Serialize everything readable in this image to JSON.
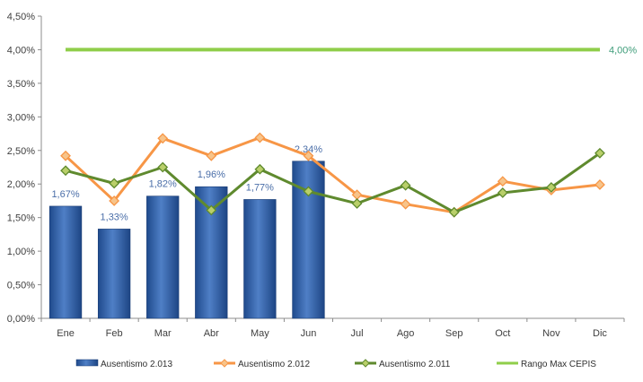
{
  "chart_data": {
    "type": "bar",
    "categories": [
      "Ene",
      "Feb",
      "Mar",
      "Abr",
      "May",
      "Jun",
      "Jul",
      "Ago",
      "Sep",
      "Oct",
      "Nov",
      "Dic"
    ],
    "ylim": [
      0,
      4.5
    ],
    "yticks": [
      "0,00%",
      "0,50%",
      "1,00%",
      "1,50%",
      "2,00%",
      "2,50%",
      "3,00%",
      "3,50%",
      "4,00%",
      "4,50%"
    ],
    "ytick_values": [
      0,
      0.5,
      1,
      1.5,
      2,
      2.5,
      3,
      3.5,
      4,
      4.5
    ],
    "grid": false,
    "legend_position": "bottom",
    "series": [
      {
        "name": "Ausentismo 2.013",
        "kind": "bar",
        "color": "#2f5ea8",
        "values": [
          1.67,
          1.33,
          1.82,
          1.96,
          1.77,
          2.34,
          null,
          null,
          null,
          null,
          null,
          null
        ],
        "labels": [
          "1,67%",
          "1,33%",
          "1,82%",
          "1,96%",
          "1,77%",
          "2,34%"
        ]
      },
      {
        "name": "Ausentismo 2.012",
        "kind": "line",
        "color": "#f79646",
        "values": [
          2.42,
          1.75,
          2.68,
          2.42,
          2.69,
          2.42,
          1.84,
          1.7,
          1.58,
          2.04,
          1.91,
          1.99
        ]
      },
      {
        "name": "Ausentismo 2.011",
        "kind": "line",
        "color": "#5f8a2e",
        "values": [
          2.2,
          2.01,
          2.25,
          1.61,
          2.22,
          1.89,
          1.71,
          1.98,
          1.58,
          1.87,
          1.95,
          2.46
        ]
      },
      {
        "name": "Rango Max CEPIS",
        "kind": "line",
        "color": "#8fce4a",
        "values": [
          4.0,
          4.0,
          4.0,
          4.0,
          4.0,
          4.0,
          4.0,
          4.0,
          4.0,
          4.0,
          4.0,
          4.0
        ],
        "end_label": "4,00%"
      }
    ]
  }
}
